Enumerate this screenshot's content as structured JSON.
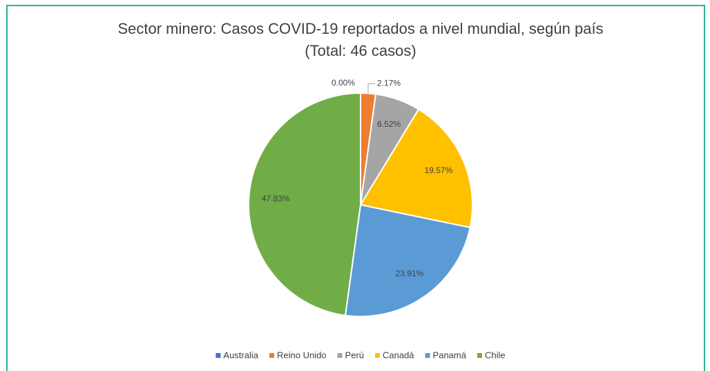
{
  "chart_data": {
    "type": "pie",
    "title": "Sector minero: Casos COVID-19 reportados a nivel mundial, según país",
    "subtitle": "(Total: 46 casos)",
    "categories": [
      "Australia",
      "Reino Unido",
      "Perú",
      "Canadá",
      "Panamá",
      "Chile"
    ],
    "values": [
      0,
      2.17,
      6.52,
      19.57,
      23.91,
      47.83
    ],
    "value_labels": [
      "0.00%",
      "2.17%",
      "6.52%",
      "19.57%",
      "23.91%",
      "47.83%"
    ],
    "colors": [
      "#4472c4",
      "#ed7d31",
      "#a5a5a5",
      "#ffc000",
      "#5b9bd5",
      "#70ad47"
    ],
    "legend": "bottom"
  }
}
